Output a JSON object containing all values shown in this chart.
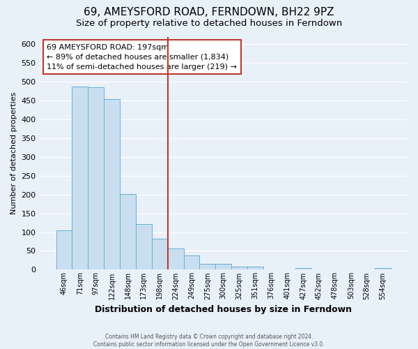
{
  "title": "69, AMEYSFORD ROAD, FERNDOWN, BH22 9PZ",
  "subtitle": "Size of property relative to detached houses in Ferndown",
  "xlabel": "Distribution of detached houses by size in Ferndown",
  "ylabel": "Number of detached properties",
  "bar_labels": [
    "46sqm",
    "71sqm",
    "97sqm",
    "122sqm",
    "148sqm",
    "173sqm",
    "198sqm",
    "224sqm",
    "249sqm",
    "275sqm",
    "300sqm",
    "325sqm",
    "351sqm",
    "376sqm",
    "401sqm",
    "427sqm",
    "452sqm",
    "478sqm",
    "503sqm",
    "528sqm",
    "554sqm"
  ],
  "bar_values": [
    105,
    487,
    486,
    453,
    202,
    121,
    83,
    56,
    38,
    15,
    15,
    9,
    9,
    0,
    0,
    4,
    0,
    0,
    0,
    0,
    5
  ],
  "bar_color": "#c9dff0",
  "bar_edge_color": "#6aaed6",
  "vline_x_index": 6,
  "vline_color": "#c0392b",
  "annotation_title": "69 AMEYSFORD ROAD: 197sqm",
  "annotation_line1": "← 89% of detached houses are smaller (1,834)",
  "annotation_line2": "11% of semi-detached houses are larger (219) →",
  "annotation_box_color": "#c0392b",
  "ylim": [
    0,
    620
  ],
  "yticks": [
    0,
    50,
    100,
    150,
    200,
    250,
    300,
    350,
    400,
    450,
    500,
    550,
    600
  ],
  "plot_bg_color": "#e8f0f8",
  "fig_bg_color": "#e8f0f8",
  "footer1": "Contains HM Land Registry data © Crown copyright and database right 2024.",
  "footer2": "Contains public sector information licensed under the Open Government Licence v3.0.",
  "grid_color": "#ffffff",
  "title_fontsize": 11,
  "subtitle_fontsize": 9.5,
  "xlabel_fontsize": 9,
  "ylabel_fontsize": 8
}
